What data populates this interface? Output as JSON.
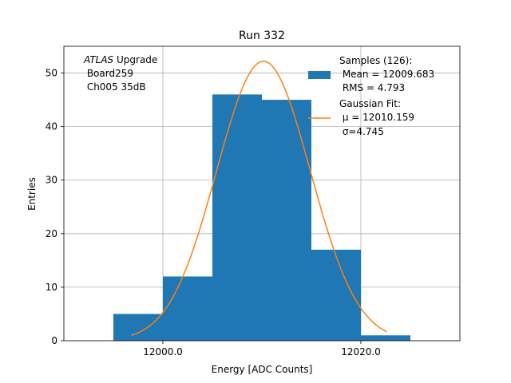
{
  "chart_data": {
    "type": "bar",
    "title": "Run 332",
    "xlabel": "Energy [ADC Counts]",
    "ylabel": "Entries",
    "xlim": [
      11990,
      12030
    ],
    "ylim": [
      0,
      55
    ],
    "grid": true,
    "x_ticks": [
      {
        "value": 12000,
        "label": "12000.0"
      },
      {
        "value": 12020,
        "label": "12020.0"
      }
    ],
    "y_ticks": [
      {
        "value": 0,
        "label": "0"
      },
      {
        "value": 10,
        "label": "10"
      },
      {
        "value": 20,
        "label": "20"
      },
      {
        "value": 30,
        "label": "30"
      },
      {
        "value": 40,
        "label": "40"
      },
      {
        "value": 50,
        "label": "50"
      }
    ],
    "histogram": {
      "color": "#1f77b4",
      "bins": [
        {
          "x0": 11995,
          "x1": 12000,
          "value": 5
        },
        {
          "x0": 12000,
          "x1": 12005,
          "value": 12
        },
        {
          "x0": 12005,
          "x1": 12010,
          "value": 46
        },
        {
          "x0": 12010,
          "x1": 12015,
          "value": 45
        },
        {
          "x0": 12015,
          "x1": 12020,
          "value": 17
        },
        {
          "x0": 12020,
          "x1": 12025,
          "value": 1
        }
      ]
    },
    "fit": {
      "type": "gaussian",
      "color": "#ff7f0e",
      "mu": 12010.159,
      "sigma": 4.745,
      "amplitude": 52.2,
      "x_range": [
        11996.8,
        12022.6
      ]
    },
    "annotation": {
      "italic": "ATLAS",
      "rest": " Upgrade",
      "line2": " Board259",
      "line3": " Ch005 35dB"
    },
    "legend": {
      "position": "top-right",
      "entries": [
        {
          "kind": "bar",
          "lines": [
            "Samples (126):",
            " Mean = 12009.683",
            " RMS = 4.793"
          ]
        },
        {
          "kind": "line",
          "lines": [
            "Gaussian Fit:",
            " μ = 12010.159",
            " σ=4.745"
          ]
        }
      ]
    }
  }
}
